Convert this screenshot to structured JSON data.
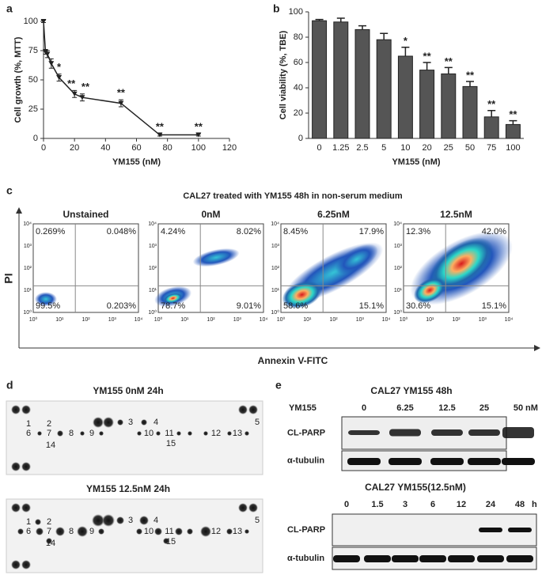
{
  "chart_data": [
    {
      "type": "line",
      "panel": "a",
      "xlabel": "YM155 (nM)",
      "ylabel": "Cell growth (%, MTT)",
      "x": [
        0,
        1.25,
        2.5,
        5,
        10,
        20,
        25,
        50,
        75,
        100
      ],
      "values": [
        100,
        74,
        72,
        64,
        52,
        38,
        35,
        30,
        3,
        3
      ],
      "errors": [
        1,
        2,
        3,
        4,
        3,
        3,
        3,
        3,
        1,
        1
      ],
      "annotations": [
        null,
        null,
        null,
        null,
        "*",
        "**",
        "**",
        "**",
        "**",
        "**"
      ],
      "color": "#222222",
      "xlim": [
        0,
        120
      ],
      "xticks": [
        0,
        20,
        40,
        60,
        80,
        100,
        120
      ],
      "ylim": [
        0,
        100
      ],
      "yticks": [
        0,
        25,
        50,
        75,
        100
      ]
    },
    {
      "type": "bar",
      "panel": "b",
      "xlabel": "YM155 (nM)",
      "ylabel": "Cell viability (%, TBE)",
      "categories": [
        "0",
        "1.25",
        "2.5",
        "5",
        "10",
        "20",
        "25",
        "50",
        "75",
        "100"
      ],
      "values": [
        93,
        92,
        86,
        78,
        65,
        54,
        51,
        41,
        17,
        11
      ],
      "errors": [
        1,
        3,
        3,
        5,
        7,
        6,
        5,
        4,
        5,
        3
      ],
      "annotations": [
        null,
        null,
        null,
        null,
        "*",
        "**",
        "**",
        "**",
        "**",
        "**"
      ],
      "color": "#555555",
      "ylim": [
        0,
        100
      ],
      "yticks": [
        0,
        20,
        40,
        60,
        80,
        100
      ]
    }
  ],
  "flow": {
    "panel": "c",
    "title": "CAL27 treated with YM155 48h in non-serum medium",
    "ylabel": "PI",
    "xlabel": "Annexin V-FITC",
    "ticks": [
      "10⁰",
      "10¹",
      "10²",
      "10³",
      "10⁴"
    ],
    "plots": [
      {
        "label": "Unstained",
        "quadrants": [
          "0.269%",
          "0.048%",
          "99.5%",
          "0.203%"
        ]
      },
      {
        "label": "0nM",
        "quadrants": [
          "4.24%",
          "8.02%",
          "78.7%",
          "9.01%"
        ]
      },
      {
        "label": "6.25nM",
        "quadrants": [
          "8.45%",
          "17.9%",
          "58.6%",
          "15.1%"
        ]
      },
      {
        "label": "12.5nM",
        "quadrants": [
          "12.3%",
          "42.0%",
          "30.6%",
          "15.1%"
        ]
      }
    ]
  },
  "array": {
    "panel": "d",
    "membranes": [
      {
        "title": "YM155 0nM 24h",
        "labels": [
          "1",
          "2",
          "3",
          "4",
          "5",
          "6",
          "7",
          "8",
          "9",
          "10",
          "11",
          "12",
          "13",
          "14",
          "15"
        ]
      },
      {
        "title": "YM155 12.5nM 24h",
        "labels": [
          "1",
          "2",
          "3",
          "4",
          "5",
          "6",
          "7",
          "8",
          "9",
          "10",
          "11",
          "12",
          "13",
          "14",
          "15"
        ]
      }
    ]
  },
  "blot": {
    "panel": "e",
    "dose": {
      "title": "CAL27 YM155 48h",
      "treatment": "YM155",
      "lanes": [
        "0",
        "6.25",
        "12.5",
        "25",
        "50"
      ],
      "unit": "nM"
    },
    "time": {
      "title": "CAL27 YM155(12.5nM)",
      "lanes": [
        "0",
        "1.5",
        "3",
        "6",
        "12",
        "24",
        "48"
      ],
      "unit": "h"
    },
    "rows": [
      "CL-PARP",
      "α-tubulin"
    ]
  }
}
